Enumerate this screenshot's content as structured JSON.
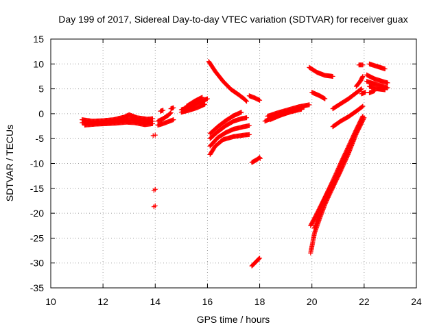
{
  "chart_data": {
    "type": "scatter",
    "title": "Day 199 of 2017, Sidereal Day-to-day VTEC variation (SDTVAR) for receiver guax",
    "xlabel": "GPS time / hours",
    "ylabel": "SDTVAR / TECUs",
    "xlim": [
      10,
      24
    ],
    "ylim": [
      -35,
      15
    ],
    "xticks": [
      "10",
      "12",
      "14",
      "16",
      "18",
      "20",
      "22",
      "24"
    ],
    "yticks": [
      "-35",
      "-30",
      "-25",
      "-20",
      "-15",
      "-10",
      "-5",
      "0",
      "5",
      "10",
      "15"
    ],
    "grid": true,
    "marker": "plus",
    "color": "#ff0000",
    "series": [
      {
        "segments": [
          [
            [
              11.2,
              -1.8
            ],
            [
              11.6,
              -1.9
            ],
            [
              12.0,
              -1.8
            ],
            [
              12.4,
              -1.6
            ],
            [
              12.8,
              -1.3
            ],
            [
              13.0,
              -1.0
            ],
            [
              13.3,
              -1.3
            ],
            [
              13.7,
              -1.6
            ],
            [
              13.9,
              -1.5
            ]
          ],
          [
            [
              11.2,
              -1.2
            ],
            [
              11.6,
              -1.5
            ],
            [
              12.0,
              -1.4
            ],
            [
              12.4,
              -1.2
            ],
            [
              12.8,
              -0.7
            ],
            [
              13.0,
              -0.2
            ],
            [
              13.3,
              -0.8
            ],
            [
              13.7,
              -1.1
            ],
            [
              13.9,
              -1.0
            ]
          ],
          [
            [
              11.3,
              -2.3
            ],
            [
              11.7,
              -2.1
            ],
            [
              12.1,
              -2.0
            ],
            [
              12.5,
              -1.9
            ],
            [
              12.9,
              -1.7
            ],
            [
              13.2,
              -1.8
            ],
            [
              13.6,
              -2.2
            ],
            [
              13.9,
              -2.0
            ]
          ],
          [
            [
              14.1,
              -1.5
            ],
            [
              14.3,
              -1.0
            ],
            [
              14.5,
              -0.3
            ],
            [
              14.6,
              0.2
            ]
          ],
          [
            [
              14.1,
              -2.3
            ],
            [
              14.3,
              -2.0
            ],
            [
              14.5,
              -1.6
            ],
            [
              14.7,
              -1.2
            ]
          ],
          [
            [
              14.2,
              0.5
            ],
            [
              14.3,
              0.7
            ]
          ],
          [
            [
              14.6,
              1.0
            ],
            [
              14.7,
              1.2
            ]
          ],
          [
            [
              15.0,
              0.8
            ],
            [
              15.3,
              1.3
            ],
            [
              15.6,
              2.0
            ],
            [
              15.9,
              2.8
            ],
            [
              16.0,
              3.0
            ]
          ],
          [
            [
              15.0,
              0.3
            ],
            [
              15.3,
              0.7
            ],
            [
              15.6,
              1.2
            ],
            [
              15.9,
              1.9
            ]
          ],
          [
            [
              15.2,
              1.5
            ],
            [
              15.5,
              2.5
            ],
            [
              15.8,
              3.3
            ]
          ],
          [
            [
              16.05,
              10.5
            ],
            [
              16.3,
              8.5
            ],
            [
              16.6,
              6.5
            ],
            [
              16.9,
              4.9
            ],
            [
              17.2,
              3.8
            ],
            [
              17.4,
              3.0
            ],
            [
              17.5,
              2.5
            ]
          ],
          [
            [
              17.6,
              3.6
            ],
            [
              17.8,
              3.2
            ],
            [
              18.0,
              2.7
            ]
          ],
          [
            [
              16.1,
              -4.0
            ],
            [
              16.4,
              -2.6
            ],
            [
              16.7,
              -1.4
            ],
            [
              17.0,
              -0.4
            ],
            [
              17.3,
              0.3
            ]
          ],
          [
            [
              16.1,
              -5.0
            ],
            [
              16.4,
              -3.6
            ],
            [
              16.7,
              -2.4
            ],
            [
              17.0,
              -1.5
            ],
            [
              17.3,
              -1.0
            ],
            [
              17.5,
              -0.8
            ]
          ],
          [
            [
              16.1,
              -6.5
            ],
            [
              16.4,
              -4.8
            ],
            [
              16.7,
              -3.8
            ],
            [
              17.0,
              -3.1
            ],
            [
              17.4,
              -2.6
            ],
            [
              17.6,
              -2.4
            ]
          ],
          [
            [
              16.1,
              -8.2
            ],
            [
              16.3,
              -6.5
            ],
            [
              16.6,
              -5.2
            ],
            [
              17.0,
              -4.6
            ],
            [
              17.4,
              -4.3
            ],
            [
              17.6,
              -4.2
            ]
          ],
          [
            [
              17.7,
              -9.8
            ],
            [
              17.9,
              -9.2
            ],
            [
              18.0,
              -8.8
            ]
          ],
          [
            [
              17.7,
              -30.6
            ],
            [
              17.85,
              -29.8
            ],
            [
              18.0,
              -29.0
            ]
          ],
          [
            [
              18.2,
              -1.5
            ],
            [
              18.6,
              -0.6
            ],
            [
              19.0,
              0.2
            ],
            [
              19.4,
              0.9
            ],
            [
              19.7,
              1.3
            ]
          ],
          [
            [
              18.3,
              -0.5
            ],
            [
              18.7,
              0.2
            ],
            [
              19.1,
              0.8
            ],
            [
              19.5,
              1.4
            ],
            [
              19.9,
              1.8
            ]
          ],
          [
            [
              18.4,
              -1.2
            ],
            [
              18.8,
              -0.3
            ],
            [
              19.2,
              0.4
            ],
            [
              19.6,
              0.9
            ]
          ],
          [
            [
              19.9,
              9.3
            ],
            [
              20.2,
              8.3
            ],
            [
              20.5,
              7.7
            ],
            [
              20.8,
              7.5
            ]
          ],
          [
            [
              20.0,
              4.3
            ],
            [
              20.3,
              3.6
            ],
            [
              20.5,
              3.0
            ]
          ],
          [
            [
              19.95,
              -28.0
            ],
            [
              20.1,
              -24.0
            ],
            [
              20.3,
              -21.0
            ],
            [
              20.5,
              -18.2
            ],
            [
              20.8,
              -14.8
            ],
            [
              21.1,
              -11.5
            ],
            [
              21.4,
              -8.0
            ],
            [
              21.7,
              -4.0
            ],
            [
              22.0,
              -0.8
            ]
          ],
          [
            [
              19.95,
              -22.5
            ],
            [
              20.2,
              -20.0
            ],
            [
              20.5,
              -16.8
            ],
            [
              20.8,
              -13.5
            ],
            [
              21.1,
              -10.0
            ],
            [
              21.4,
              -6.6
            ],
            [
              21.7,
              -3.2
            ],
            [
              21.95,
              -0.5
            ]
          ],
          [
            [
              20.1,
              -23.0
            ],
            [
              20.4,
              -18.0
            ],
            [
              20.7,
              -15.0
            ],
            [
              21.0,
              -12.0
            ]
          ],
          [
            [
              20.8,
              1.0
            ],
            [
              21.1,
              2.0
            ],
            [
              21.4,
              3.0
            ],
            [
              21.7,
              4.2
            ],
            [
              21.9,
              5.0
            ]
          ],
          [
            [
              20.8,
              -2.6
            ],
            [
              21.1,
              -1.5
            ],
            [
              21.4,
              -0.6
            ],
            [
              21.7,
              0.5
            ],
            [
              21.95,
              1.5
            ]
          ],
          [
            [
              21.7,
              5.5
            ],
            [
              21.85,
              6.5
            ],
            [
              21.95,
              7.5
            ]
          ],
          [
            [
              21.8,
              9.8
            ],
            [
              21.95,
              9.8
            ]
          ],
          [
            [
              22.2,
              10.0
            ],
            [
              22.5,
              9.5
            ],
            [
              22.8,
              9.0
            ]
          ],
          [
            [
              22.1,
              7.8
            ],
            [
              22.4,
              7.0
            ],
            [
              22.7,
              6.5
            ],
            [
              22.9,
              6.2
            ]
          ],
          [
            [
              22.1,
              6.5
            ],
            [
              22.4,
              6.0
            ],
            [
              22.7,
              5.5
            ],
            [
              22.9,
              5.2
            ]
          ],
          [
            [
              22.2,
              5.5
            ],
            [
              22.5,
              5.0
            ],
            [
              22.8,
              4.8
            ]
          ],
          [
            [
              22.2,
              4.2
            ],
            [
              22.4,
              4.6
            ]
          ],
          [
            [
              21.9,
              4.0
            ],
            [
              22.05,
              4.3
            ]
          ]
        ],
        "points": [
          [
            13.92,
            -4.4
          ],
          [
            14.0,
            -4.3
          ],
          [
            13.95,
            -15.4
          ],
          [
            14.0,
            -15.2
          ],
          [
            13.95,
            -18.7
          ],
          [
            14.0,
            -18.5
          ],
          [
            18.02,
            -9.0
          ]
        ]
      }
    ]
  }
}
